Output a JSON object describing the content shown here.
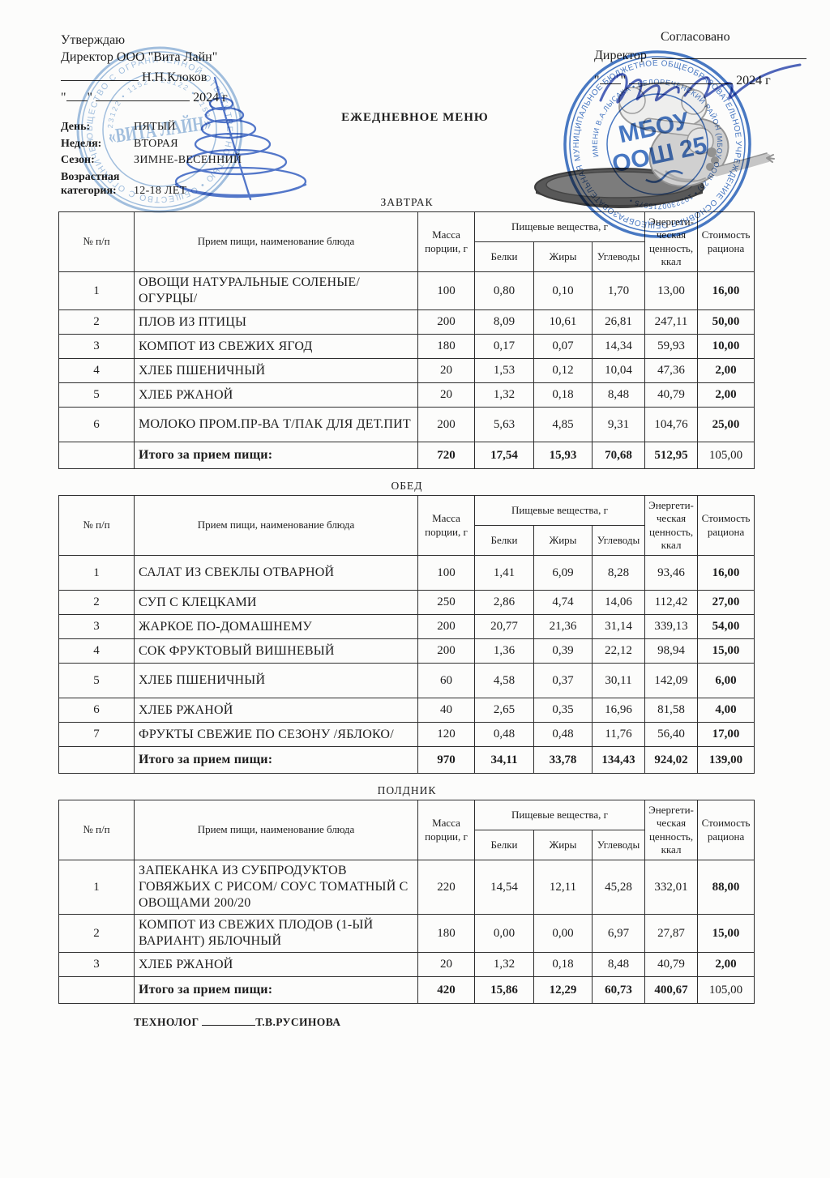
{
  "document": {
    "title": "ЕЖЕДНЕВНОЕ МЕНЮ"
  },
  "approval_left": {
    "line1": "Утверждаю",
    "line2": "Директор ООО \"Вита Лайн\"",
    "signer_name": "Н.Н.Клоков",
    "quote_mark": "\"",
    "date_suffix": "2024 г"
  },
  "approval_right": {
    "line1": "Согласовано",
    "line2": "Директор",
    "quote_mark": "\"",
    "date_suffix": "2024 г"
  },
  "meta": {
    "rows": [
      {
        "label": "День:",
        "value": "ПЯТЫЙ"
      },
      {
        "label": "Неделя:",
        "value": "ВТОРАЯ"
      },
      {
        "label": "Сезон:",
        "value": "ЗИМНЕ-ВЕСЕННИЙ"
      },
      {
        "label": "Возрастная\nкатегория:",
        "value": "12-18 ЛЕТ"
      }
    ]
  },
  "table_headers": {
    "num": "№ п/п",
    "dish": "Прием пищи, наименование блюда",
    "mass": "Масса порции, г",
    "nutrients": "Пищевые вещества, г",
    "protein": "Белки",
    "fat": "Жиры",
    "carbs": "Углеводы",
    "energy": "Энергети-ческая ценность, ккал",
    "cost": "Стоимость рациона"
  },
  "tables": [
    {
      "caption": "ЗАВТРАК",
      "rows": [
        [
          "1",
          "ОВОЩИ НАТУРАЛЬНЫЕ СОЛЕНЫЕ/\nОГУРЦЫ/",
          "100",
          "0,80",
          "0,10",
          "1,70",
          "13,00",
          "16,00"
        ],
        [
          "2",
          "ПЛОВ ИЗ ПТИЦЫ",
          "200",
          "8,09",
          "10,61",
          "26,81",
          "247,11",
          "50,00"
        ],
        [
          "3",
          "КОМПОТ ИЗ СВЕЖИХ ЯГОД",
          "180",
          "0,17",
          "0,07",
          "14,34",
          "59,93",
          "10,00"
        ],
        [
          "4",
          "ХЛЕБ ПШЕНИЧНЫЙ",
          "20",
          "1,53",
          "0,12",
          "10,04",
          "47,36",
          "2,00"
        ],
        [
          "5",
          "ХЛЕБ РЖАНОЙ",
          "20",
          "1,32",
          "0,18",
          "8,48",
          "40,79",
          "2,00"
        ],
        [
          "6",
          "МОЛОКО ПРОМ.ПР-ВА Т/ПАК ДЛЯ ДЕТ.ПИТ",
          "200",
          "5,63",
          "4,85",
          "9,31",
          "104,76",
          "25,00"
        ]
      ],
      "tall_rows": [
        5
      ],
      "total": [
        "",
        "Итого за прием пищи:",
        "720",
        "17,54",
        "15,93",
        "70,68",
        "512,95",
        "105,00"
      ],
      "total_cost_bold": false
    },
    {
      "caption": "ОБЕД",
      "rows": [
        [
          "1",
          "САЛАТ ИЗ СВЕКЛЫ ОТВАРНОЙ",
          "100",
          "1,41",
          "6,09",
          "8,28",
          "93,46",
          "16,00"
        ],
        [
          "2",
          "СУП С КЛЕЦКАМИ",
          "250",
          "2,86",
          "4,74",
          "14,06",
          "112,42",
          "27,00"
        ],
        [
          "3",
          "ЖАРКОЕ ПО-ДОМАШНЕМУ",
          "200",
          "20,77",
          "21,36",
          "31,14",
          "339,13",
          "54,00"
        ],
        [
          "4",
          "СОК ФРУКТОВЫЙ ВИШНЕВЫЙ",
          "200",
          "1,36",
          "0,39",
          "22,12",
          "98,94",
          "15,00"
        ],
        [
          "5",
          "ХЛЕБ ПШЕНИЧНЫЙ",
          "60",
          "4,58",
          "0,37",
          "30,11",
          "142,09",
          "6,00"
        ],
        [
          "6",
          "ХЛЕБ РЖАНОЙ",
          "40",
          "2,65",
          "0,35",
          "16,96",
          "81,58",
          "4,00"
        ],
        [
          "7",
          "ФРУКТЫ СВЕЖИЕ ПО СЕЗОНУ /ЯБЛОКО/",
          "120",
          "0,48",
          "0,48",
          "11,76",
          "56,40",
          "17,00"
        ]
      ],
      "tall_rows": [
        0,
        4
      ],
      "total": [
        "",
        "Итого за прием пищи:",
        "970",
        "34,11",
        "33,78",
        "134,43",
        "924,02",
        "139,00"
      ],
      "total_cost_bold": true
    },
    {
      "caption": "ПОЛДНИК",
      "rows": [
        [
          "1",
          "ЗАПЕКАНКА ИЗ  СУБПРОДУКТОВ\nГОВЯЖЬИХ  С РИСОМ/ СОУС ТОМАТНЫЙ С\nОВОЩАМИ 200/20",
          "220",
          "14,54",
          "12,11",
          "45,28",
          "332,01",
          "88,00"
        ],
        [
          "2",
          "КОМПОТ ИЗ СВЕЖИХ ПЛОДОВ (1-ЫЙ\nВАРИАНТ) ЯБЛОЧНЫЙ",
          "180",
          "0,00",
          "0,00",
          "6,97",
          "27,87",
          "15,00"
        ],
        [
          "3",
          "ХЛЕБ РЖАНОЙ",
          "20",
          "1,32",
          "0,18",
          "8,48",
          "40,79",
          "2,00"
        ]
      ],
      "tall_rows": [],
      "total": [
        "",
        "Итого за прием пищи:",
        "420",
        "15,86",
        "12,29",
        "60,73",
        "400,67",
        "105,00"
      ],
      "total_cost_bold": false
    }
  ],
  "footer": {
    "role": "ТЕХНОЛОГ",
    "name": "Т.В.РУСИНОВА"
  },
  "stamps": {
    "vita": {
      "center": "«ВИТА ЛАЙН»",
      "ring_outer": "ОБЩЕСТВО С ОГРАНИЧЕННОЙ ОТВЕТСТВЕННОСТЬЮ • ОБЩЕСТВО С ОГРАНИЧЕННОЙ ОТВЕТСТВЕННОСТЬЮ •",
      "ring_inner": "• 23122 • 1152 • 23122 • 1152",
      "color": "#7fa9d6"
    },
    "school": {
      "center_line1": "МБОУ",
      "center_line2": "ООШ 25",
      "ring_outer": "МУНИЦИПАЛЬНОЕ БЮДЖЕТНОЕ ОБЩЕОБРАЗОВАТЕЛЬНОЕ УЧРЕЖДЕНИЕ ОСНОВНАЯ ОБЩЕОБРАЗОВАТЕЛЬНАЯ ШКОЛА № 25 •",
      "ring_inner": "ИМЕНИ В.А.ЛЫСАКА • БЕЛОРЕЧЕНСКИЙ РАЙОН (МБОУ ООШ 25) • 1022300715975 •",
      "color": "#2f66bd"
    }
  }
}
